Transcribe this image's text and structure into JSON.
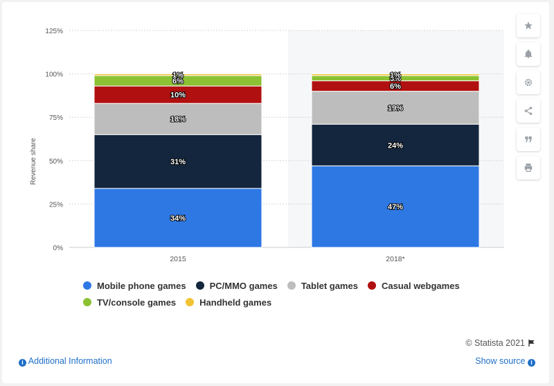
{
  "chart_data": {
    "type": "bar",
    "stacked": true,
    "categories": [
      "2015",
      "2018*"
    ],
    "series": [
      {
        "name": "Mobile phone games",
        "values": [
          34,
          47
        ],
        "labels": [
          "34%",
          "47%"
        ],
        "color": "#2e78e4"
      },
      {
        "name": "PC/MMO games",
        "values": [
          31,
          24
        ],
        "labels": [
          "31%",
          "24%"
        ],
        "color": "#13263d"
      },
      {
        "name": "Tablet games",
        "values": [
          18,
          19
        ],
        "labels": [
          "18%",
          "19%"
        ],
        "color": "#bdbdbd"
      },
      {
        "name": "Casual webgames",
        "values": [
          10,
          6
        ],
        "labels": [
          "10%",
          "6%"
        ],
        "color": "#b0100f"
      },
      {
        "name": "TV/console games",
        "values": [
          6,
          3
        ],
        "labels": [
          "6%",
          "3%"
        ],
        "color": "#8bc133"
      },
      {
        "name": "Handheld games",
        "values": [
          1,
          1
        ],
        "labels": [
          "1%",
          "1%"
        ],
        "color": "#f1c232"
      }
    ],
    "ylabel": "Revenue share",
    "ylim": [
      0,
      125
    ],
    "yticks": [
      {
        "value": 0,
        "label": "0%"
      },
      {
        "value": 25,
        "label": "25%"
      },
      {
        "value": 50,
        "label": "50%"
      },
      {
        "value": 75,
        "label": "75%"
      },
      {
        "value": 100,
        "label": "100%"
      },
      {
        "value": 125,
        "label": "125%"
      }
    ],
    "grid": true,
    "legend_position": "bottom"
  },
  "legend": {
    "items": [
      {
        "label": "Mobile phone games",
        "color": "#2e78e4"
      },
      {
        "label": "PC/MMO games",
        "color": "#13263d"
      },
      {
        "label": "Tablet games",
        "color": "#bdbdbd"
      },
      {
        "label": "Casual webgames",
        "color": "#b0100f"
      },
      {
        "label": "TV/console games",
        "color": "#8bc133"
      },
      {
        "label": "Handheld games",
        "color": "#f1c232"
      }
    ]
  },
  "toolbar": {
    "icons": [
      "star-icon",
      "bell-icon",
      "gear-icon",
      "share-icon",
      "quote-icon",
      "print-icon"
    ]
  },
  "footer": {
    "credit": "© Statista 2021",
    "additional_info": "Additional Information",
    "show_source": "Show source"
  }
}
